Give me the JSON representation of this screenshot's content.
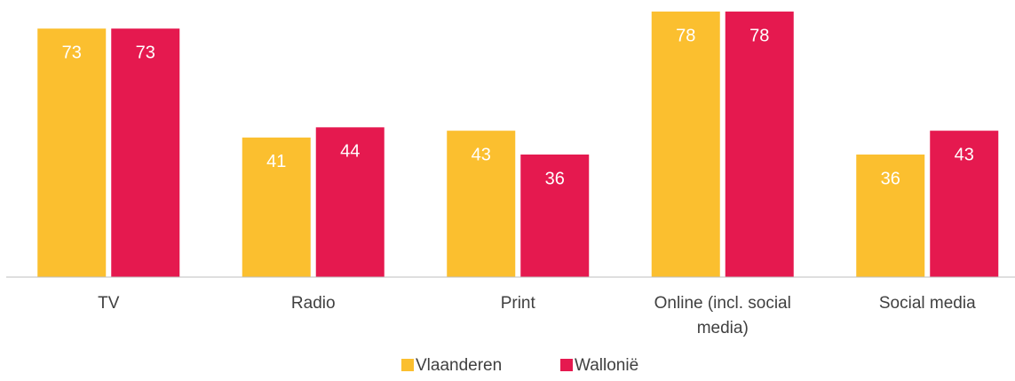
{
  "chart_data": {
    "type": "bar",
    "categories": [
      "TV",
      "Radio",
      "Print",
      "Online (incl. social media)",
      "Social media"
    ],
    "series": [
      {
        "name": "Vlaanderen",
        "color": "#fbbf2f",
        "values": [
          73,
          41,
          43,
          78,
          36
        ]
      },
      {
        "name": "Wallonië",
        "color": "#e5194f",
        "values": [
          73,
          44,
          36,
          78,
          43
        ]
      }
    ]
  }
}
